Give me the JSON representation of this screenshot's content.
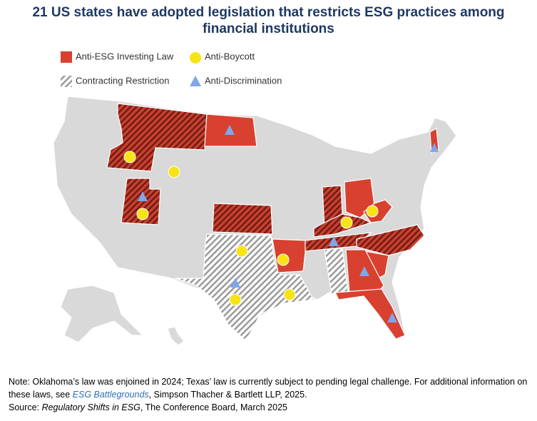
{
  "header": {
    "title_lines": [
      "21 US states have adopted legislation that restricts ESG practices among",
      "financial institutions"
    ]
  },
  "legend": {
    "items": [
      "Anti-ESG Investing Law",
      "Anti-Boycott",
      "Contracting Restriction",
      "Anti-Discrimination"
    ]
  },
  "note": {
    "text": "Note: Oklahoma’s law was enjoined in 2024; Texas’ law is currently subject to pending legal challenge. For additional information on these laws, see ",
    "link": "ESG Battlegrounds",
    "text_after": ", Simpson Thacher & Bartlett LLP, 2025."
  },
  "source": {
    "prefix": "Source: ",
    "title": "Regulatory Shifts in ESG",
    "rest": ", The Conference Board, March 2025"
  }
}
